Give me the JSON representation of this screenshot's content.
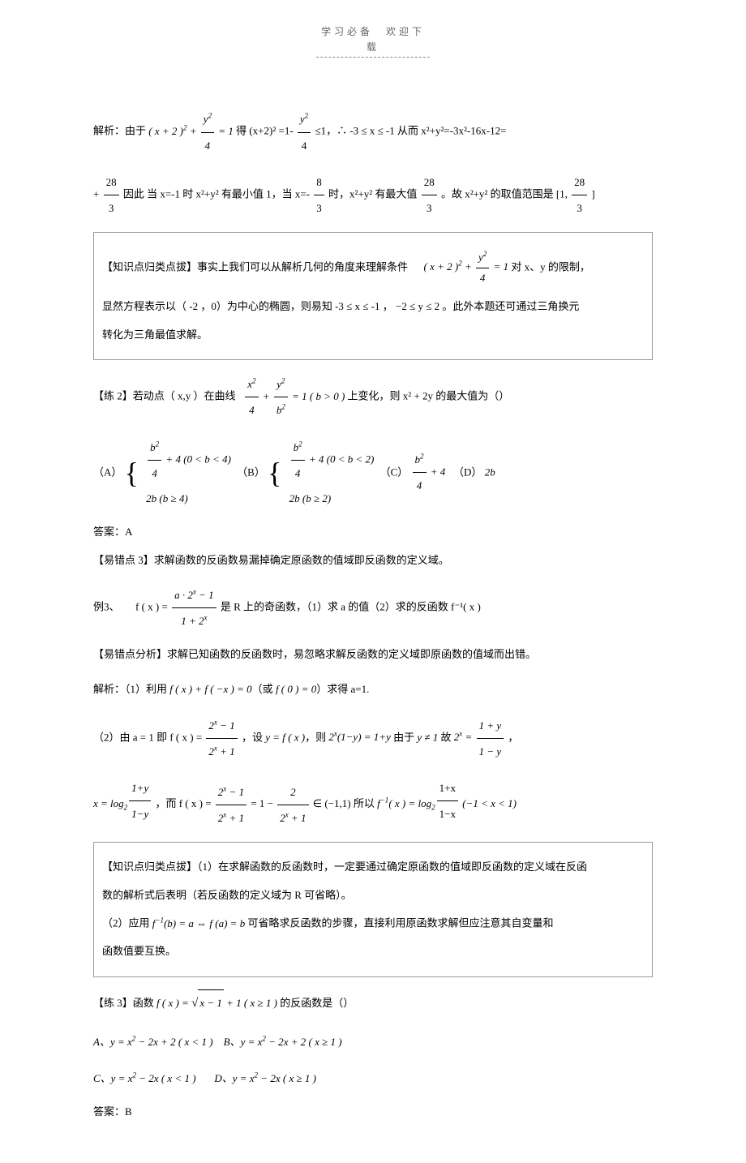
{
  "header": "学习必备　欢迎下载",
  "p1_a": "解析：由于",
  "eq1": "( x + 2 )² + y²/4 = 1",
  "p1_b": "得 (x+2)² =1-",
  "p1_c": "≤1，∴ -3 ≤ x ≤ -1  从而 x²+y²=-3x²-16x-12=",
  "p2_a": "+",
  "p2_b": "因此 当 x=-1 时 x²+y² 有最小值 1，当 x=-",
  "p2_c": "时，x²+y² 有最大值",
  "p2_d": "。故 x²+y² 的取值范围是 [1,",
  "p2_e": " ]",
  "frac_28_3_num": "28",
  "frac_28_3_den": "3",
  "frac_8_3_num": "8",
  "frac_8_3_den": "3",
  "box1_a": "【知识点归类点拔】事实上我们可以从解析几何的角度来理解条件",
  "box1_b": "对 x、y 的限制，",
  "box1_c": "显然方程表示以（ -2 ，0）为中心的椭圆，则易知  -3 ≤ x ≤ -1 ， −2 ≤ y ≤ 2 。此外本题还可通过三角换元",
  "box1_d": "转化为三角最值求解。",
  "pr2_a": "【练 2】若动点（ x,y ）在曲线",
  "pr2_b": "上变化，则 x² + 2y 的最大值为（）",
  "pr2_eq_lhs": "x²/4 + y²/b² = 1 ( b > 0 )",
  "opt_a_label": "（A）",
  "opt_b_label": "（B）",
  "opt_c_label": "（C）",
  "opt_d_label": "（D）",
  "opt_a_row1": "b²/4 + 4 (0 < b < 4)",
  "opt_a_row2": "2b (b ≥ 4)",
  "opt_b_row1": "b²/4 + 4 (0 < b < 2)",
  "opt_b_row2": "2b (b ≥ 2)",
  "opt_c": "b²/4 + 4",
  "opt_d": "2b",
  "ans2": "答案：A",
  "err3": "【易错点 3】求解函数的反函数易漏掉确定原函数的值域即反函数的定义域。",
  "ex3_a": "例3、　　f ( x ) =",
  "ex3_fr_num": "a · 2ˣ − 1",
  "ex3_fr_den": "1 + 2ˣ",
  "ex3_b": "是 R 上的奇函数，（1）求 a 的值（2）求的反函数  f⁻¹( x )",
  "err3_anal": "【易错点分析】求解已知函数的反函数时，易忽略求解反函数的定义域即原函数的值域而出错。",
  "sol1": "解析：（1）利用 f ( x ) + f ( −x ) = 0（或 f ( 0 ) = 0）求得 a=1.",
  "sol2_a": "（2）由 a = 1 即 f ( x ) =",
  "sol2_fr1_num": "2ˣ − 1",
  "sol2_fr1_den": "2ˣ + 1",
  "sol2_b": "，设 y = f ( x )，则 2ˣ(1−y) = 1+y 由于 y ≠ 1 故 2ˣ =",
  "sol2_fr2_num": "1 + y",
  "sol2_fr2_den": "1 − y",
  "sol2_c": "，",
  "sol3_a": "x = log₂",
  "sol3_exp1": "(1+y)/(1−y)",
  "sol3_b": "，而 f ( x ) =",
  "sol3_c": " = 1 −",
  "sol3_fr3_num": "2",
  "sol3_fr3_den": "2ˣ + 1",
  "sol3_d": " ∈ (−1,1) 所以 f⁻¹( x ) = log₂",
  "sol3_exp2": "(1+x)/(1−x)",
  "sol3_e": " (−1 < x < 1)",
  "box2_a": "【知识点归类点拔】（1）在求解函数的反函数时，一定要通过确定原函数的值域即反函数的定义域在反函",
  "box2_b": "数的解析式后表明（若反函数的定义域为  R 可省略）。",
  "box2_c": "（2）应用 f⁻¹(b) = a ⇔ f (a) = b 可省略求反函数的步骤，直接利用原函数求解但应注意其自变量和",
  "box2_d": "函数值要互换。",
  "pr3_a": "【练 3】函数 f ( x ) = √(x−1) + 1 ( x ≥ 1 ) 的反函数是（）",
  "pr3_optA": "A、y = x² − 2x + 2 ( x < 1 )",
  "pr3_optB": "B、y = x² − 2x + 2 ( x ≥ 1 )",
  "pr3_optC": "C、y = x² − 2x ( x < 1 )",
  "pr3_optD": "D、y = x² − 2x ( x ≥ 1 )",
  "ans3": "答案：B",
  "colors": {
    "text": "#000000",
    "header": "#666666",
    "box_border": "#999999",
    "bg": "#ffffff"
  }
}
